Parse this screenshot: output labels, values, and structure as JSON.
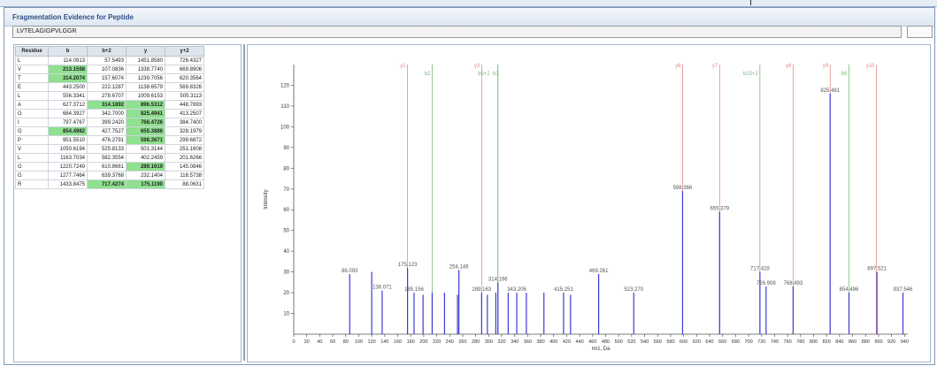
{
  "window": {
    "title": "Fragmentation Evidence for Peptide"
  },
  "peptide": {
    "sequence": "LVTELAGIGPVLGGR"
  },
  "table": {
    "headers": [
      "Residue",
      "b",
      "b+2",
      "y",
      "y+2"
    ],
    "rows": [
      {
        "residue": "L",
        "b": "114.0913",
        "b2": "57.5493",
        "y": "1451.8580",
        "y2": "726.4327",
        "hl": []
      },
      {
        "residue": "V",
        "b": "213.1598",
        "b2": "107.0836",
        "y": "1338.7740",
        "y2": "669.8906",
        "hl": [
          "b"
        ]
      },
      {
        "residue": "T",
        "b": "314.2074",
        "b2": "157.6074",
        "y": "1239.7056",
        "y2": "620.3564",
        "hl": [
          "b"
        ]
      },
      {
        "residue": "E",
        "b": "443.2500",
        "b2": "222.1287",
        "y": "1138.6579",
        "y2": "569.8326",
        "hl": []
      },
      {
        "residue": "L",
        "b": "556.3341",
        "b2": "278.6707",
        "y": "1009.6153",
        "y2": "505.3113",
        "hl": []
      },
      {
        "residue": "A",
        "b": "627.3712",
        "b2": "314.1892",
        "y": "896.5312",
        "y2": "448.7693",
        "hl": [
          "b2",
          "y"
        ]
      },
      {
        "residue": "G",
        "b": "684.3927",
        "b2": "342.7000",
        "y": "825.4941",
        "y2": "413.2507",
        "hl": [
          "y"
        ]
      },
      {
        "residue": "I",
        "b": "797.4767",
        "b2": "399.2420",
        "y": "768.4726",
        "y2": "384.7400",
        "hl": [
          "y"
        ]
      },
      {
        "residue": "G",
        "b": "854.4982",
        "b2": "427.7527",
        "y": "655.3886",
        "y2": "328.1979",
        "hl": [
          "b",
          "y"
        ]
      },
      {
        "residue": "P",
        "b": "951.5510",
        "b2": "476.2791",
        "y": "598.3671",
        "y2": "299.6872",
        "hl": [
          "y"
        ]
      },
      {
        "residue": "V",
        "b": "1050.6194",
        "b2": "525.8133",
        "y": "501.3144",
        "y2": "251.1608",
        "hl": []
      },
      {
        "residue": "L",
        "b": "1163.7034",
        "b2": "582.3554",
        "y": "402.2459",
        "y2": "201.6266",
        "hl": []
      },
      {
        "residue": "G",
        "b": "1220.7249",
        "b2": "610.8661",
        "y": "289.1619",
        "y2": "145.0846",
        "hl": [
          "y"
        ]
      },
      {
        "residue": "G",
        "b": "1277.7464",
        "b2": "639.3768",
        "y": "232.1404",
        "y2": "116.5738",
        "hl": []
      },
      {
        "residue": "R",
        "b": "1433.8475",
        "b2": "717.4274",
        "y": "175.1190",
        "y2": "88.0631",
        "hl": [
          "b2",
          "y"
        ]
      }
    ]
  },
  "chart_data": {
    "type": "bar",
    "xlabel": "m/z, Da",
    "ylabel": "Intensity",
    "xlim": [
      0,
      945
    ],
    "ylim": [
      0,
      130
    ],
    "xticks": [
      0,
      20,
      40,
      60,
      80,
      100,
      120,
      140,
      160,
      180,
      200,
      220,
      240,
      260,
      280,
      300,
      320,
      340,
      360,
      380,
      400,
      420,
      440,
      460,
      480,
      500,
      520,
      540,
      560,
      580,
      600,
      620,
      640,
      660,
      680,
      700,
      720,
      740,
      760,
      780,
      800,
      820,
      840,
      860,
      880,
      900,
      920,
      940
    ],
    "yticks": [
      10,
      20,
      30,
      40,
      50,
      60,
      70,
      80,
      90,
      100,
      110,
      120
    ],
    "colors": {
      "y_ion": "#e88a8a",
      "b_ion": "#7ab87a",
      "peak": "#3b3bd9",
      "label": "#555555"
    },
    "fragment_markers": [
      {
        "label": "y1",
        "x": 175.1,
        "kind": "y"
      },
      {
        "label": "b2",
        "x": 213.2,
        "kind": "b"
      },
      {
        "label": "y3",
        "x": 289.2,
        "kind": "y"
      },
      {
        "label": "b6+2",
        "x": 314.2,
        "kind": "b"
      },
      {
        "label": "b3",
        "x": 314.2,
        "kind": "b"
      },
      {
        "label": "y6",
        "x": 598.4,
        "kind": "y"
      },
      {
        "label": "y7",
        "x": 655.4,
        "kind": "y"
      },
      {
        "label": "b15+2",
        "x": 717.4,
        "kind": "b"
      },
      {
        "label": "y8",
        "x": 768.5,
        "kind": "y"
      },
      {
        "label": "y9",
        "x": 825.5,
        "kind": "y"
      },
      {
        "label": "b9",
        "x": 854.5,
        "kind": "b"
      },
      {
        "label": "y10",
        "x": 896.5,
        "kind": "y"
      }
    ],
    "peaks": [
      {
        "x": 86.093,
        "y": 29,
        "label": "86.093"
      },
      {
        "x": 120.0,
        "y": 30,
        "label": ""
      },
      {
        "x": 136.071,
        "y": 21,
        "label": "136.071"
      },
      {
        "x": 175.123,
        "y": 32,
        "label": "175.123"
      },
      {
        "x": 185.156,
        "y": 20,
        "label": "185.156"
      },
      {
        "x": 199.0,
        "y": 19,
        "label": ""
      },
      {
        "x": 213.0,
        "y": 20,
        "label": ""
      },
      {
        "x": 232.0,
        "y": 20,
        "label": ""
      },
      {
        "x": 254.146,
        "y": 31,
        "label": "254.146"
      },
      {
        "x": 252.0,
        "y": 19,
        "label": ""
      },
      {
        "x": 289.163,
        "y": 20,
        "label": "289.163"
      },
      {
        "x": 298.0,
        "y": 19,
        "label": ""
      },
      {
        "x": 311.0,
        "y": 20,
        "label": ""
      },
      {
        "x": 314.196,
        "y": 25,
        "label": "314.196"
      },
      {
        "x": 330.0,
        "y": 20,
        "label": ""
      },
      {
        "x": 343.206,
        "y": 20,
        "label": "343.206"
      },
      {
        "x": 358.0,
        "y": 20,
        "label": ""
      },
      {
        "x": 385.0,
        "y": 20,
        "label": ""
      },
      {
        "x": 415.251,
        "y": 20,
        "label": "415.251"
      },
      {
        "x": 426.0,
        "y": 19,
        "label": ""
      },
      {
        "x": 469.261,
        "y": 29,
        "label": "469.261"
      },
      {
        "x": 523.27,
        "y": 20,
        "label": "523.270"
      },
      {
        "x": 598.366,
        "y": 69,
        "label": "598.366"
      },
      {
        "x": 655.379,
        "y": 59,
        "label": "655.379"
      },
      {
        "x": 717.428,
        "y": 30,
        "label": "717.428"
      },
      {
        "x": 726.908,
        "y": 23,
        "label": "726.908"
      },
      {
        "x": 768.493,
        "y": 23,
        "label": "768.493"
      },
      {
        "x": 825.481,
        "y": 116,
        "label": "825.481"
      },
      {
        "x": 854.496,
        "y": 20,
        "label": "854.496"
      },
      {
        "x": 897.521,
        "y": 30,
        "label": "897.521"
      },
      {
        "x": 937.546,
        "y": 20,
        "label": "937.546"
      }
    ]
  }
}
